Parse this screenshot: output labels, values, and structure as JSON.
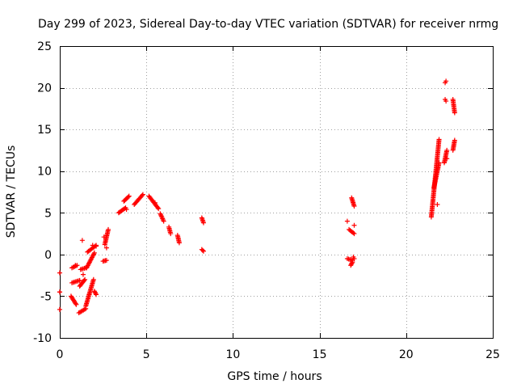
{
  "chart_data": {
    "type": "scatter",
    "title": "Day 299 of 2023, Sidereal Day-to-day VTEC variation (SDTVAR) for receiver nrmg",
    "xlabel": "GPS time / hours",
    "ylabel": "SDTVAR / TECUs",
    "xlim": [
      0,
      25
    ],
    "ylim": [
      -10,
      25
    ],
    "xticks": [
      0,
      5,
      10,
      15,
      20,
      25
    ],
    "yticks": [
      -10,
      -5,
      0,
      5,
      10,
      15,
      20,
      25
    ],
    "xtick_labels": [
      "0",
      "5",
      "10",
      "15",
      "20",
      "25"
    ],
    "ytick_labels": [
      "-10",
      "-5",
      "0",
      "5",
      "10",
      "15",
      "20",
      "25"
    ],
    "grid": true,
    "marker": "+",
    "marker_color": "#ff0000",
    "series": [
      {
        "name": "SDTVAR",
        "segments": [
          {
            "x": [
              0.0,
              0.0
            ],
            "y": [
              -2.2,
              -2.2
            ]
          },
          {
            "x": [
              0.0,
              0.0
            ],
            "y": [
              -4.5,
              -4.5
            ]
          },
          {
            "x": [
              0.0,
              0.0
            ],
            "y": [
              -6.6,
              -6.6
            ]
          },
          {
            "x": [
              0.65,
              0.95
            ],
            "y": [
              -5.0,
              -6.0
            ]
          },
          {
            "x": [
              0.7,
              1.0
            ],
            "y": [
              -1.6,
              -1.3
            ]
          },
          {
            "x": [
              0.7,
              1.15
            ],
            "y": [
              -3.4,
              -3.1
            ]
          },
          {
            "x": [
              1.15,
              1.45
            ],
            "y": [
              -3.8,
              -3.0
            ]
          },
          {
            "x": [
              1.1,
              1.5
            ],
            "y": [
              -7.0,
              -6.5
            ]
          },
          {
            "x": [
              1.2,
              1.5
            ],
            "y": [
              -1.8,
              -1.6
            ]
          },
          {
            "x": [
              1.5,
              1.95
            ],
            "y": [
              -6.2,
              -3.0
            ]
          },
          {
            "x": [
              1.55,
              2.0
            ],
            "y": [
              -1.6,
              0.2
            ]
          },
          {
            "x": [
              1.6,
              2.1
            ],
            "y": [
              0.3,
              1.1
            ]
          },
          {
            "x": [
              2.0,
              2.1
            ],
            "y": [
              -4.4,
              -4.8
            ]
          },
          {
            "x": [
              2.5,
              2.7
            ],
            "y": [
              -0.8,
              -0.7
            ]
          },
          {
            "x": [
              2.6,
              2.8
            ],
            "y": [
              1.2,
              3.0
            ]
          },
          {
            "x": [
              3.4,
              3.8
            ],
            "y": [
              5.0,
              5.6
            ]
          },
          {
            "x": [
              3.7,
              4.0
            ],
            "y": [
              6.4,
              7.0
            ]
          },
          {
            "x": [
              4.3,
              4.8
            ],
            "y": [
              6.0,
              7.2
            ]
          },
          {
            "x": [
              5.15,
              5.7
            ],
            "y": [
              7.0,
              5.5
            ]
          },
          {
            "x": [
              5.8,
              6.0
            ],
            "y": [
              4.9,
              4.0
            ]
          },
          {
            "x": [
              6.3,
              6.4
            ],
            "y": [
              3.3,
              2.5
            ]
          },
          {
            "x": [
              6.8,
              6.9
            ],
            "y": [
              2.3,
              1.4
            ]
          },
          {
            "x": [
              8.2,
              8.3
            ],
            "y": [
              4.4,
              3.8
            ]
          },
          {
            "x": [
              8.2,
              8.3
            ],
            "y": [
              0.6,
              0.4
            ]
          },
          {
            "x": [
              16.6,
              16.9
            ],
            "y": [
              -0.5,
              -0.7
            ]
          },
          {
            "x": [
              16.7,
              17.0
            ],
            "y": [
              3.0,
              2.5
            ]
          },
          {
            "x": [
              16.8,
              16.9
            ],
            "y": [
              -1.3,
              -0.9
            ]
          },
          {
            "x": [
              16.85,
              17.0
            ],
            "y": [
              6.8,
              5.8
            ]
          },
          {
            "x": [
              16.95,
              17.0
            ],
            "y": [
              -0.3,
              -0.5
            ]
          },
          {
            "x": [
              21.45,
              21.9
            ],
            "y": [
              4.5,
              13.8
            ]
          },
          {
            "x": [
              21.6,
              21.9
            ],
            "y": [
              8.0,
              11.0
            ]
          },
          {
            "x": [
              22.2,
              22.35
            ],
            "y": [
              11.0,
              12.5
            ]
          },
          {
            "x": [
              22.25,
              22.3
            ],
            "y": [
              20.6,
              20.8
            ]
          },
          {
            "x": [
              22.25,
              22.3
            ],
            "y": [
              18.6,
              18.4
            ]
          },
          {
            "x": [
              22.7,
              22.8
            ],
            "y": [
              12.5,
              13.7
            ]
          },
          {
            "x": [
              22.7,
              22.8
            ],
            "y": [
              18.6,
              17.0
            ]
          }
        ],
        "points": [
          {
            "x": 0.9,
            "y": -1.3
          },
          {
            "x": 1.3,
            "y": 1.7
          },
          {
            "x": 1.35,
            "y": -2.4
          },
          {
            "x": 1.7,
            "y": -4.8
          },
          {
            "x": 1.9,
            "y": 1.1
          },
          {
            "x": 2.1,
            "y": 1.0
          },
          {
            "x": 2.55,
            "y": 2.1
          },
          {
            "x": 2.7,
            "y": 0.8
          },
          {
            "x": 3.85,
            "y": 5.4
          },
          {
            "x": 5.5,
            "y": 6.2
          },
          {
            "x": 16.6,
            "y": 4.0
          },
          {
            "x": 17.0,
            "y": 3.5
          },
          {
            "x": 21.8,
            "y": 6.0
          },
          {
            "x": 22.35,
            "y": 11.5
          }
        ]
      }
    ]
  }
}
